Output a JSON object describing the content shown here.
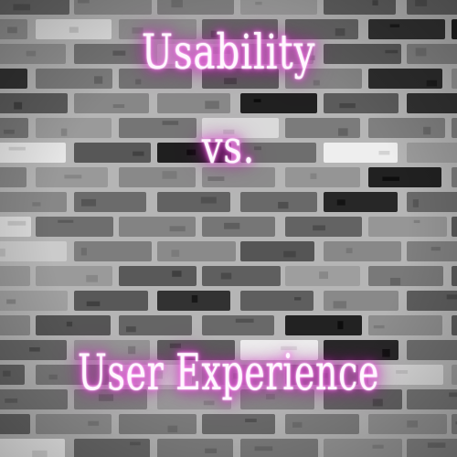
{
  "lines": {
    "top": "Usability",
    "middle": "vs.",
    "bottom": "User Experience"
  },
  "colors": {
    "neon_text": "#fff6ff",
    "neon_glow": "#e23bd6",
    "brick_base": "#6f6f6f",
    "mortar": "#b5b5b5"
  }
}
